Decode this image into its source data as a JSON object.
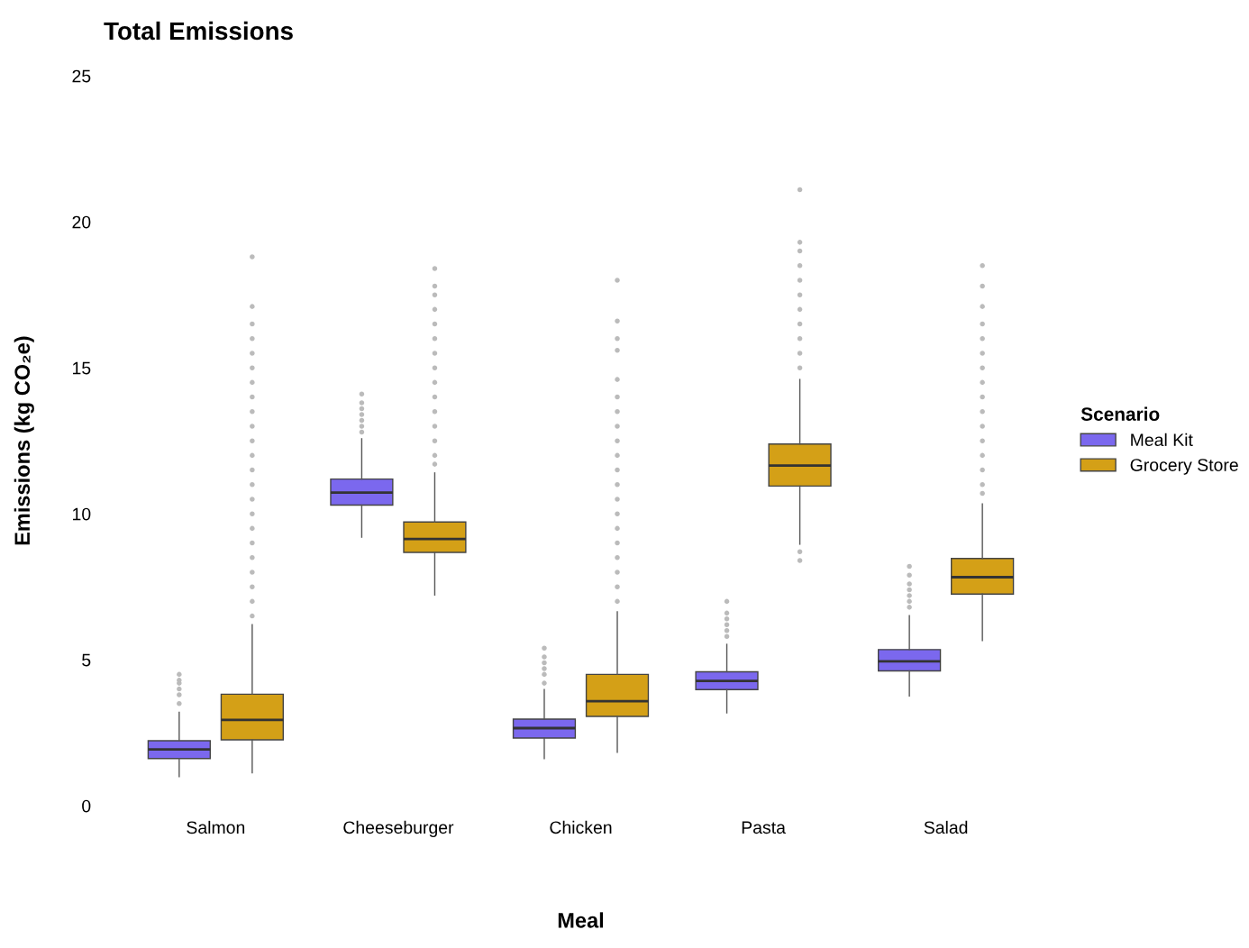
{
  "chart_data": {
    "type": "box",
    "title": "Total Emissions",
    "xlabel": "Meal",
    "ylabel": "Emissions (kg CO₂e)",
    "legend_title": "Scenario",
    "categories": [
      "Salmon",
      "Cheeseburger",
      "Chicken",
      "Pasta",
      "Salad"
    ],
    "ylim": [
      0,
      25
    ],
    "yticks": [
      0,
      5,
      10,
      15,
      20,
      25
    ],
    "grid": false,
    "legend": "right",
    "series": [
      {
        "name": "Meal Kit",
        "color": "#7b68ee",
        "boxes": [
          {
            "low": 1.0,
            "q1": 1.62,
            "median": 1.93,
            "q3": 2.23,
            "high": 3.2,
            "outliers": [
              3.5,
              3.8,
              4.0,
              4.2,
              4.3,
              4.5
            ]
          },
          {
            "low": 9.2,
            "q1": 10.3,
            "median": 10.73,
            "q3": 11.19,
            "high": 12.57,
            "outliers": [
              12.8,
              13.0,
              13.2,
              13.4,
              13.6,
              13.8,
              14.1
            ]
          },
          {
            "low": 1.62,
            "q1": 2.32,
            "median": 2.66,
            "q3": 2.97,
            "high": 3.98,
            "outliers": [
              4.2,
              4.5,
              4.7,
              4.9,
              5.1,
              5.4
            ]
          },
          {
            "low": 3.18,
            "q1": 3.98,
            "median": 4.28,
            "q3": 4.59,
            "high": 5.53,
            "outliers": [
              5.8,
              6.0,
              6.2,
              6.4,
              6.6,
              7.0
            ]
          },
          {
            "low": 3.76,
            "q1": 4.62,
            "median": 4.95,
            "q3": 5.35,
            "high": 6.51,
            "outliers": [
              6.8,
              7.0,
              7.2,
              7.4,
              7.6,
              7.9,
              8.2
            ]
          }
        ]
      },
      {
        "name": "Grocery Store",
        "color": "#d4a017",
        "boxes": [
          {
            "low": 1.13,
            "q1": 2.26,
            "median": 2.94,
            "q3": 3.82,
            "high": 6.2,
            "outliers": [
              6.5,
              7.0,
              7.5,
              8.0,
              8.5,
              9.0,
              9.5,
              10.0,
              10.5,
              11.0,
              11.5,
              12.0,
              12.5,
              13.0,
              13.5,
              14.0,
              14.5,
              15.0,
              15.5,
              16.0,
              16.5,
              17.1,
              18.8
            ]
          },
          {
            "low": 7.22,
            "q1": 8.68,
            "median": 9.14,
            "q3": 9.72,
            "high": 11.4,
            "outliers": [
              11.7,
              12.0,
              12.5,
              13.0,
              13.5,
              14.0,
              14.5,
              15.0,
              15.5,
              16.0,
              16.5,
              17.0,
              17.5,
              17.8,
              18.4
            ]
          },
          {
            "low": 1.83,
            "q1": 3.06,
            "median": 3.58,
            "q3": 4.5,
            "high": 6.64,
            "outliers": [
              7.0,
              7.5,
              8.0,
              8.5,
              9.0,
              9.5,
              10.0,
              10.5,
              11.0,
              11.5,
              12.0,
              12.5,
              13.0,
              13.5,
              14.0,
              14.6,
              15.6,
              16.0,
              16.6,
              18.0
            ]
          },
          {
            "low": 8.96,
            "q1": 10.95,
            "median": 11.65,
            "q3": 12.39,
            "high": 14.6,
            "outliers": [
              8.4,
              8.7,
              15.0,
              15.5,
              16.0,
              16.5,
              17.0,
              17.5,
              18.0,
              18.5,
              19.0,
              19.3,
              21.1
            ]
          },
          {
            "low": 5.66,
            "q1": 7.25,
            "median": 7.83,
            "q3": 8.47,
            "high": 10.34,
            "outliers": [
              10.7,
              11.0,
              11.5,
              12.0,
              12.5,
              13.0,
              13.5,
              14.0,
              14.5,
              15.0,
              15.5,
              16.0,
              16.5,
              17.1,
              17.8,
              18.5
            ]
          }
        ]
      }
    ]
  }
}
